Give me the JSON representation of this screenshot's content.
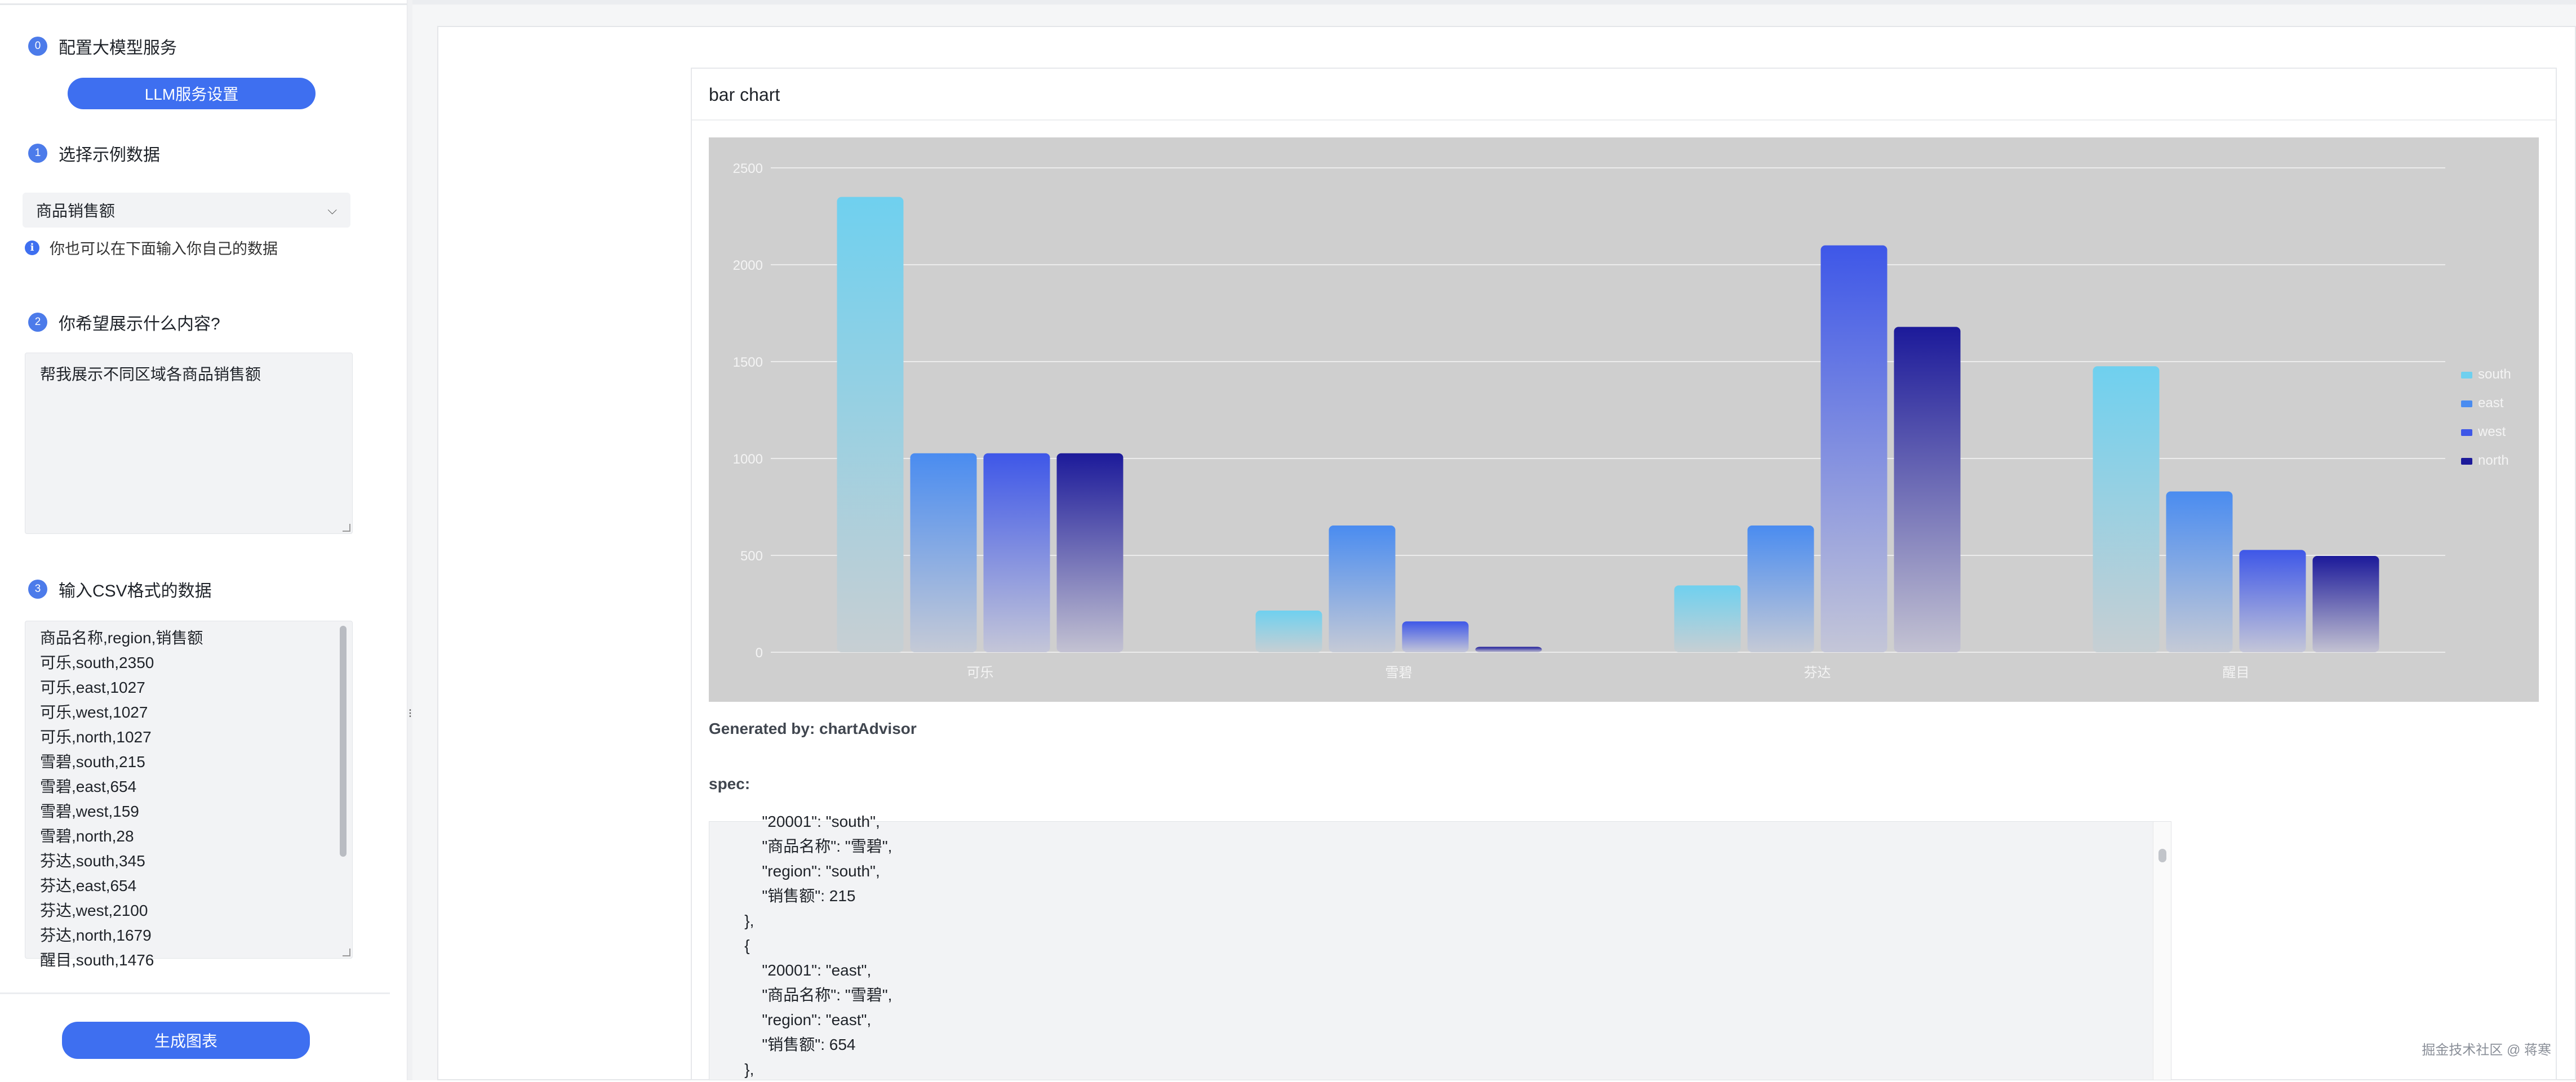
{
  "sidebar": {
    "step0": {
      "badge": "0",
      "title": "配置大模型服务"
    },
    "llm_button": "LLM服务设置",
    "step1": {
      "badge": "1",
      "title": "选择示例数据"
    },
    "dataset_selected": "商品销售额",
    "hint": "你也可以在下面输入你自己的数据",
    "step2": {
      "badge": "2",
      "title": "你希望展示什么内容?"
    },
    "query_text": "帮我展示不同区域各商品销售额",
    "step3": {
      "badge": "3",
      "title": "输入CSV格式的数据"
    },
    "csv_lines": [
      "商品名称,region,销售额",
      "可乐,south,2350",
      "可乐,east,1027",
      "可乐,west,1027",
      "可乐,north,1027",
      "雪碧,south,215",
      "雪碧,east,654",
      "雪碧,west,159",
      "雪碧,north,28",
      "芬达,south,345",
      "芬达,east,654",
      "芬达,west,2100",
      "芬达,north,1679",
      "醒目,south,1476"
    ],
    "generate_button": "生成图表"
  },
  "card": {
    "title": "bar chart",
    "generated_by": "Generated by: chartAdvisor",
    "spec_label": "spec:",
    "spec_lines": [
      "            \"20001\": \"south\",",
      "            \"商品名称\": \"雪碧\",",
      "            \"region\": \"south\",",
      "            \"销售额\": 215",
      "        },",
      "        {",
      "            \"20001\": \"east\",",
      "            \"商品名称\": \"雪碧\",",
      "            \"region\": \"east\",",
      "            \"销售额\": 654",
      "        },"
    ]
  },
  "watermark": "掘金技术社区 @ 蒋寒",
  "chart_data": {
    "type": "bar",
    "categories": [
      "可乐",
      "雪碧",
      "芬达",
      "醒目"
    ],
    "series": [
      {
        "name": "south",
        "values": [
          2350,
          215,
          345,
          1476
        ],
        "color_top": "#6fd0ef",
        "color_bottom": "#c7cfd3"
      },
      {
        "name": "east",
        "values": [
          1027,
          654,
          654,
          830
        ],
        "color_top": "#4a8cf0",
        "color_bottom": "#c5cad6"
      },
      {
        "name": "west",
        "values": [
          1027,
          159,
          2100,
          528
        ],
        "color_top": "#3e57e8",
        "color_bottom": "#c4c6d8"
      },
      {
        "name": "north",
        "values": [
          1027,
          28,
          1679,
          497
        ],
        "color_top": "#1c1a9a",
        "color_bottom": "#c3c2d2"
      }
    ],
    "yticks": [
      0,
      500,
      1000,
      1500,
      2000,
      2500
    ],
    "ylim": [
      0,
      2500
    ],
    "grid": true,
    "legend": "right",
    "background": "#cfcfcf"
  }
}
